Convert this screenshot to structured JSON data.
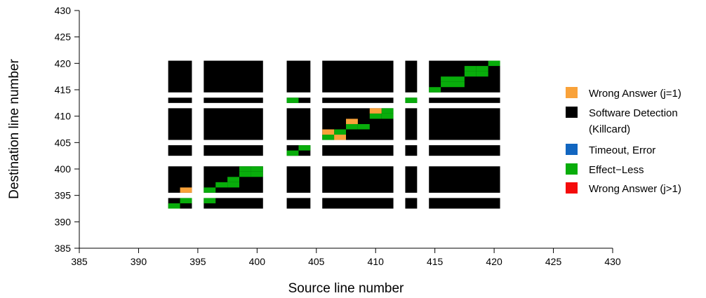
{
  "chart_data": {
    "type": "heatmap",
    "xlabel": "Source line number",
    "ylabel": "Destination line number",
    "xlim": [
      385,
      430
    ],
    "ylim": [
      385,
      430
    ],
    "xticks": [
      "385",
      "390",
      "395",
      "400",
      "405",
      "410",
      "415",
      "420",
      "425",
      "430"
    ],
    "yticks": [
      "385",
      "390",
      "395",
      "400",
      "405",
      "410",
      "415",
      "420",
      "425",
      "430"
    ],
    "grid": false,
    "legend_position": "right",
    "legend": [
      {
        "label": "Wrong Answer (j=1)",
        "color": "#f9a23a"
      },
      {
        "label": "Software Detection",
        "label2": "(Killcard)",
        "color": "#000000"
      },
      {
        "label": "Timeout, Error",
        "color": "#1266c0"
      },
      {
        "label": "Effect−Less",
        "color": "#08ad0b"
      },
      {
        "label": "Wrong Answer (j>1)",
        "color": "#f40b0b"
      }
    ],
    "colors": {
      "wrong_answer_j1": "#f9a23a",
      "software_detection": "#000000",
      "timeout_error": "#1266c0",
      "effect_less": "#08ad0b",
      "wrong_answer_jgt1": "#f40b0b"
    },
    "killcard_blocks": {
      "x_ranges": [
        [
          392.5,
          394.5
        ],
        [
          395.5,
          400.5
        ],
        [
          402.5,
          404.5
        ],
        [
          405.5,
          411.5
        ],
        [
          412.5,
          413.5
        ],
        [
          414.5,
          420.5
        ]
      ],
      "y_ranges": [
        [
          392.5,
          394.5
        ],
        [
          395.5,
          400.5
        ],
        [
          402.5,
          404.5
        ],
        [
          405.5,
          411.5
        ],
        [
          412.5,
          413.5
        ],
        [
          414.5,
          420.5
        ]
      ]
    },
    "effect_less_cells": [
      [
        393,
        393
      ],
      [
        394,
        394
      ],
      [
        396,
        396
      ],
      [
        396,
        394
      ],
      [
        397,
        397
      ],
      [
        398,
        397
      ],
      [
        398,
        398
      ],
      [
        399,
        399
      ],
      [
        399,
        400
      ],
      [
        400,
        399
      ],
      [
        400,
        400
      ],
      [
        403,
        403
      ],
      [
        404,
        404
      ],
      [
        403,
        413
      ],
      [
        406,
        406
      ],
      [
        407,
        407
      ],
      [
        408,
        408
      ],
      [
        409,
        408
      ],
      [
        410,
        410
      ],
      [
        411,
        410
      ],
      [
        411,
        411
      ],
      [
        413,
        413
      ],
      [
        415,
        415
      ],
      [
        416,
        416
      ],
      [
        417,
        416
      ],
      [
        416,
        417
      ],
      [
        417,
        417
      ],
      [
        418,
        418
      ],
      [
        419,
        418
      ],
      [
        418,
        419
      ],
      [
        419,
        419
      ],
      [
        420,
        420
      ]
    ],
    "wrong_answer_j1_cells": [
      [
        394,
        396
      ],
      [
        406,
        407
      ],
      [
        407,
        406
      ],
      [
        408,
        409
      ],
      [
        410,
        411
      ]
    ]
  }
}
